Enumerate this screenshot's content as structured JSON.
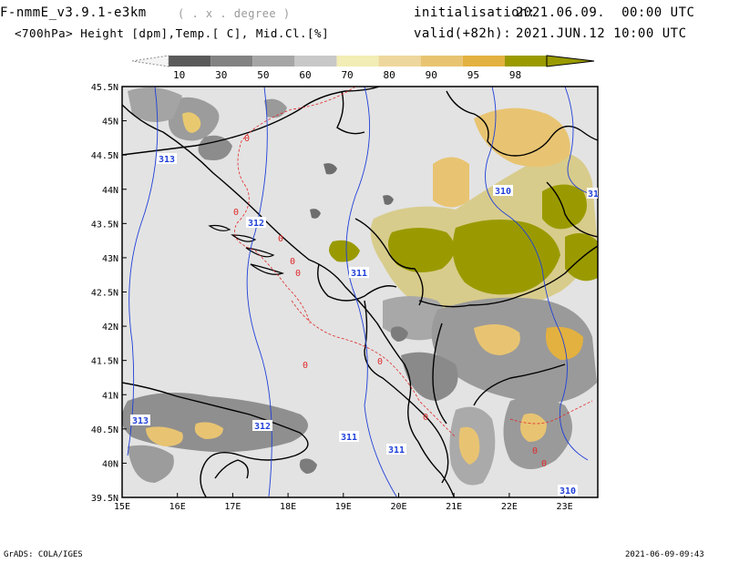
{
  "header": {
    "model": "F-nmmE_v3.9.1-e3km",
    "units_note": "( . x . degree )",
    "init_label": "initialisation:",
    "init_value": "2021.06.09.  00:00 UTC",
    "field": "<700hPa> Height [dpm],Temp.[ C], Mid.Cl.[%]",
    "valid_label": "valid(+82h):",
    "valid_value": "2021.JUN.12 10:00 UTC"
  },
  "colorbar": {
    "ticks": [
      "10",
      "30",
      "50",
      "60",
      "70",
      "80",
      "90",
      "95",
      "98"
    ],
    "colors": [
      "#5a5a5a",
      "#828282",
      "#a6a6a6",
      "#c8c8c8",
      "#f2edb4",
      "#eed79c",
      "#e8c472",
      "#e3b13f",
      "#9a9a00"
    ]
  },
  "map": {
    "lat_labels": [
      "45.5N",
      "45N",
      "44.5N",
      "44N",
      "43.5N",
      "43N",
      "42.5N",
      "42N",
      "41.5N",
      "41N",
      "40.5N",
      "40N",
      "39.5N"
    ],
    "lon_labels": [
      "15E",
      "16E",
      "17E",
      "18E",
      "19E",
      "20E",
      "21E",
      "22E",
      "23E"
    ],
    "height_labels": [
      "313",
      "312",
      "311",
      "310",
      "313",
      "312",
      "311",
      "311",
      "310",
      "31"
    ],
    "temp_labels": [
      "0",
      "0",
      "0",
      "0",
      "0",
      "0",
      "0",
      "0",
      "0",
      "0"
    ],
    "colors": {
      "sea_land": "#e3e3e3",
      "border": "#000000",
      "height_contour": "#1f3fd8",
      "temp_contour": "#e02a2a"
    }
  },
  "footer": {
    "left": "GrADS: COLA/IGES",
    "right": "2021-06-09-09:43"
  }
}
